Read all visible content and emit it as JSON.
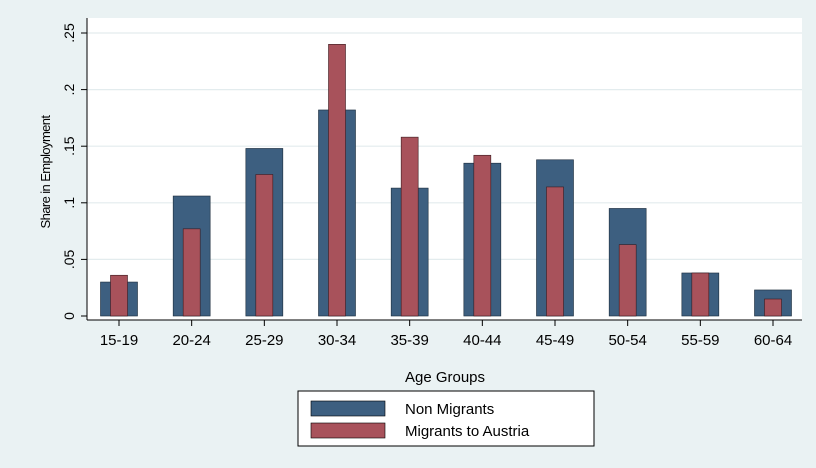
{
  "chart_data": {
    "type": "bar",
    "title": "",
    "xlabel": "Age Groups",
    "ylabel": "Share in Employment",
    "ylim": [
      0,
      0.25
    ],
    "yticks": [
      0,
      0.05,
      0.1,
      0.15,
      0.2,
      0.25
    ],
    "ytick_labels": [
      "0",
      ".05",
      ".1",
      ".15",
      ".2",
      ".25"
    ],
    "grid": true,
    "legend_position": "bottom",
    "categories": [
      "15-19",
      "20-24",
      "25-29",
      "30-34",
      "35-39",
      "40-44",
      "45-49",
      "50-54",
      "55-59",
      "60-64"
    ],
    "series": [
      {
        "name": "Non Migrants",
        "color": "#3d5f80",
        "values": [
          0.03,
          0.106,
          0.148,
          0.182,
          0.113,
          0.135,
          0.138,
          0.095,
          0.038,
          0.023
        ]
      },
      {
        "name": "Migrants to Austria",
        "color": "#a8525b",
        "values": [
          0.036,
          0.077,
          0.125,
          0.24,
          0.158,
          0.142,
          0.114,
          0.063,
          0.038,
          0.015
        ]
      }
    ]
  }
}
